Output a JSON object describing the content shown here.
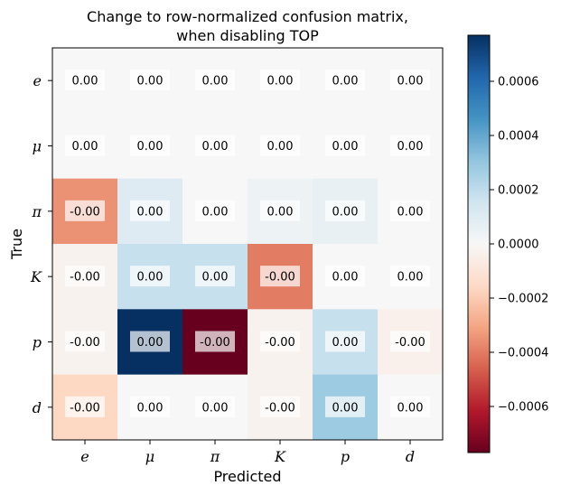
{
  "chart_data": {
    "type": "heatmap",
    "title_line1": "Change to row-normalized confusion matrix,",
    "title_line2": "when disabling TOP",
    "xlabel": "Predicted",
    "ylabel": "True",
    "x_categories": [
      "e",
      "μ",
      "π",
      "K",
      "p",
      "d"
    ],
    "y_categories": [
      "e",
      "μ",
      "π",
      "K",
      "p",
      "d"
    ],
    "values": [
      [
        0.0,
        0.0,
        0.0,
        0.0,
        0.0,
        0.0
      ],
      [
        0.0,
        0.0,
        0.0,
        0.0,
        0.0,
        0.0
      ],
      [
        -0.00035,
        0.0001,
        0.0,
        4e-05,
        6e-05,
        0.0
      ],
      [
        -3e-05,
        0.00018,
        0.00018,
        -0.0004,
        0.0,
        0.0
      ],
      [
        -3e-05,
        0.00077,
        -0.00077,
        -3e-05,
        0.00018,
        -4e-05
      ],
      [
        -0.00016,
        0.0,
        0.0,
        -3e-05,
        0.00028,
        0.0
      ]
    ],
    "cell_labels": [
      [
        "0.00",
        "0.00",
        "0.00",
        "0.00",
        "0.00",
        "0.00"
      ],
      [
        "0.00",
        "0.00",
        "0.00",
        "0.00",
        "0.00",
        "0.00"
      ],
      [
        "-0.00",
        "0.00",
        "0.00",
        "0.00",
        "0.00",
        "0.00"
      ],
      [
        "-0.00",
        "0.00",
        "0.00",
        "-0.00",
        "0.00",
        "0.00"
      ],
      [
        "-0.00",
        "0.00",
        "-0.00",
        "-0.00",
        "0.00",
        "-0.00"
      ],
      [
        "-0.00",
        "0.00",
        "0.00",
        "-0.00",
        "0.00",
        "0.00"
      ]
    ],
    "colorbar": {
      "vmin": -0.00077,
      "vmax": 0.00077,
      "colormap": "RdBu",
      "ticks": [
        -0.0006,
        -0.0004,
        -0.0002,
        0.0,
        0.0002,
        0.0004,
        0.0006
      ],
      "tick_labels": [
        "−0.0006",
        "−0.0004",
        "−0.0002",
        "0.0000",
        "0.0002",
        "0.0004",
        "0.0006"
      ]
    }
  }
}
